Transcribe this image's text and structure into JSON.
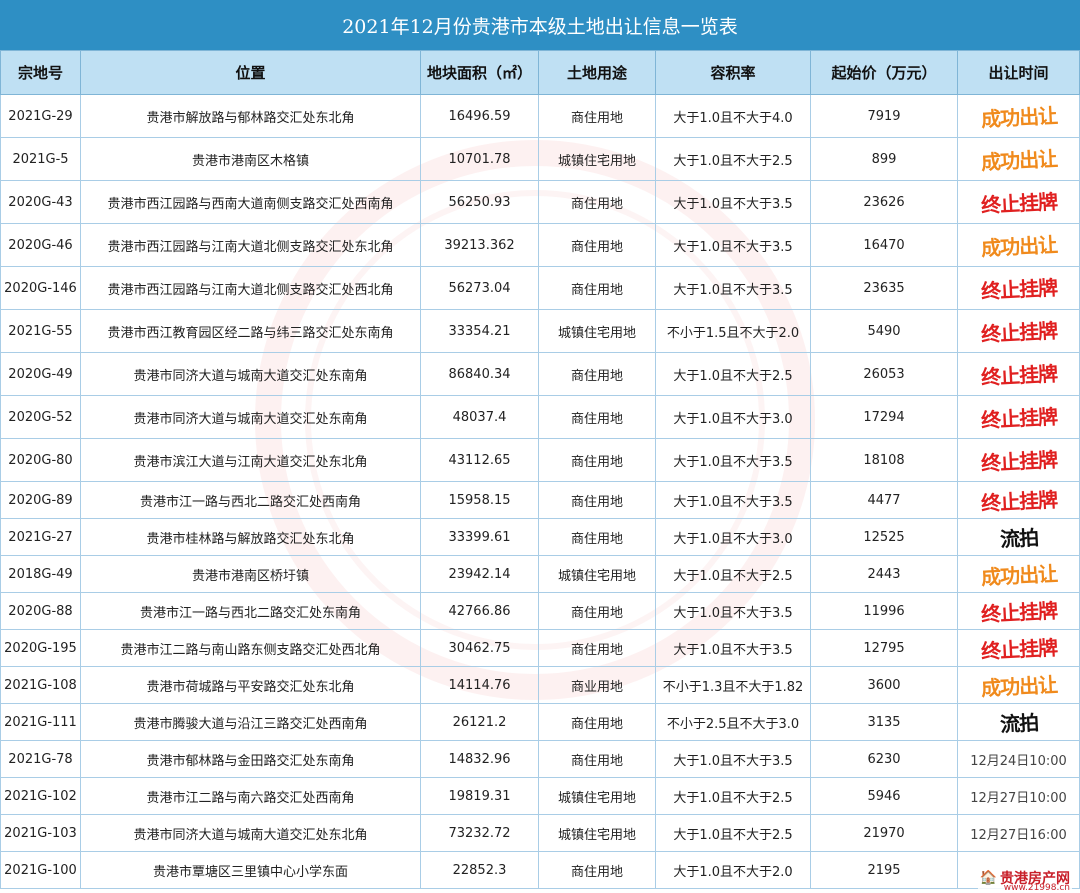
{
  "title": "2021年12月份贵港市本级土地出让信息一览表",
  "headers": [
    "宗地号",
    "位置",
    "地块面积（㎡）",
    "土地用途",
    "容积率",
    "起始价（万元）",
    "出让时间"
  ],
  "status_colors": {
    "成功出让": "#f08a1c",
    "终止挂牌": "#e02020",
    "流拍": "#111111"
  },
  "rows": [
    {
      "id": "2021G-29",
      "loc": "贵港市解放路与郁林路交汇处东北角",
      "area": "16496.59",
      "use": "商住用地",
      "far": "大于1.0且不大于4.0",
      "price": "7919",
      "time": "",
      "status": "成功出让"
    },
    {
      "id": "2021G-5",
      "loc": "贵港市港南区木格镇",
      "area": "10701.78",
      "use": "城镇住宅用地",
      "far": "大于1.0且不大于2.5",
      "price": "899",
      "time": "",
      "status": "成功出让"
    },
    {
      "id": "2020G-43",
      "loc": "贵港市西江园路与西南大道南侧支路交汇处西南角",
      "area": "56250.93",
      "use": "商住用地",
      "far": "大于1.0且不大于3.5",
      "price": "23626",
      "time": "",
      "status": "终止挂牌"
    },
    {
      "id": "2020G-46",
      "loc": "贵港市西江园路与江南大道北侧支路交汇处东北角",
      "area": "39213.362",
      "use": "商住用地",
      "far": "大于1.0且不大于3.5",
      "price": "16470",
      "time": "",
      "status": "成功出让"
    },
    {
      "id": "2020G-146",
      "loc": "贵港市西江园路与江南大道北侧支路交汇处西北角",
      "area": "56273.04",
      "use": "商住用地",
      "far": "大于1.0且不大于3.5",
      "price": "23635",
      "time": "",
      "status": "终止挂牌"
    },
    {
      "id": "2021G-55",
      "loc": "贵港市西江教育园区经二路与纬三路交汇处东南角",
      "area": "33354.21",
      "use": "城镇住宅用地",
      "far": "不小于1.5且不大于2.0",
      "price": "5490",
      "time": "",
      "status": "终止挂牌"
    },
    {
      "id": "2020G-49",
      "loc": "贵港市同济大道与城南大道交汇处东南角",
      "area": "86840.34",
      "use": "商住用地",
      "far": "大于1.0且不大于2.5",
      "price": "26053",
      "time": "",
      "status": "终止挂牌"
    },
    {
      "id": "2020G-52",
      "loc": "贵港市同济大道与城南大道交汇处东南角",
      "area": "48037.4",
      "use": "商住用地",
      "far": "大于1.0且不大于3.0",
      "price": "17294",
      "time": "",
      "status": "终止挂牌"
    },
    {
      "id": "2020G-80",
      "loc": "贵港市滨江大道与江南大道交汇处东北角",
      "area": "43112.65",
      "use": "商住用地",
      "far": "大于1.0且不大于3.5",
      "price": "18108",
      "time": "",
      "status": "终止挂牌"
    },
    {
      "id": "2020G-89",
      "loc": "贵港市江一路与西北二路交汇处西南角",
      "area": "15958.15",
      "use": "商住用地",
      "far": "大于1.0且不大于3.5",
      "price": "4477",
      "time": "",
      "status": "终止挂牌"
    },
    {
      "id": "2021G-27",
      "loc": "贵港市桂林路与解放路交汇处东北角",
      "area": "33399.61",
      "use": "商住用地",
      "far": "大于1.0且不大于3.0",
      "price": "12525",
      "time": "",
      "status": "流拍"
    },
    {
      "id": "2018G-49",
      "loc": "贵港市港南区桥圩镇",
      "area": "23942.14",
      "use": "城镇住宅用地",
      "far": "大于1.0且不大于2.5",
      "price": "2443",
      "time": "",
      "status": "成功出让"
    },
    {
      "id": "2020G-88",
      "loc": "贵港市江一路与西北二路交汇处东南角",
      "area": "42766.86",
      "use": "商住用地",
      "far": "大于1.0且不大于3.5",
      "price": "11996",
      "time": "",
      "status": "终止挂牌"
    },
    {
      "id": "2020G-195",
      "loc": "贵港市江二路与南山路东侧支路交汇处西北角",
      "area": "30462.75",
      "use": "商住用地",
      "far": "大于1.0且不大于3.5",
      "price": "12795",
      "time": "",
      "status": "终止挂牌"
    },
    {
      "id": "2021G-108",
      "loc": "贵港市荷城路与平安路交汇处东北角",
      "area": "14114.76",
      "use": "商业用地",
      "far": "不小于1.3且不大于1.82",
      "price": "3600",
      "time": "",
      "status": "成功出让"
    },
    {
      "id": "2021G-111",
      "loc": "贵港市腾骏大道与沿江三路交汇处西南角",
      "area": "26121.2",
      "use": "商住用地",
      "far": "不小于2.5且不大于3.0",
      "price": "3135",
      "time": "",
      "status": "流拍"
    },
    {
      "id": "2021G-78",
      "loc": "贵港市郁林路与金田路交汇处东南角",
      "area": "14832.96",
      "use": "商住用地",
      "far": "大于1.0且不大于3.5",
      "price": "6230",
      "time": "12月24日10:00",
      "status": ""
    },
    {
      "id": "2021G-102",
      "loc": "贵港市江二路与南六路交汇处西南角",
      "area": "19819.31",
      "use": "城镇住宅用地",
      "far": "大于1.0且不大于2.5",
      "price": "5946",
      "time": "12月27日10:00",
      "status": ""
    },
    {
      "id": "2021G-103",
      "loc": "贵港市同济大道与城南大道交汇处东北角",
      "area": "73232.72",
      "use": "城镇住宅用地",
      "far": "大于1.0且不大于2.5",
      "price": "21970",
      "time": "12月27日16:00",
      "status": ""
    },
    {
      "id": "2021G-100",
      "loc": "贵港市覃塘区三里镇中心小学东面",
      "area": "22852.3",
      "use": "商住用地",
      "far": "大于1.0且不大于2.0",
      "price": "2195",
      "time": "",
      "status": ""
    }
  ],
  "logo": {
    "name": "贵港房产网",
    "url": "www.21998.cn"
  }
}
